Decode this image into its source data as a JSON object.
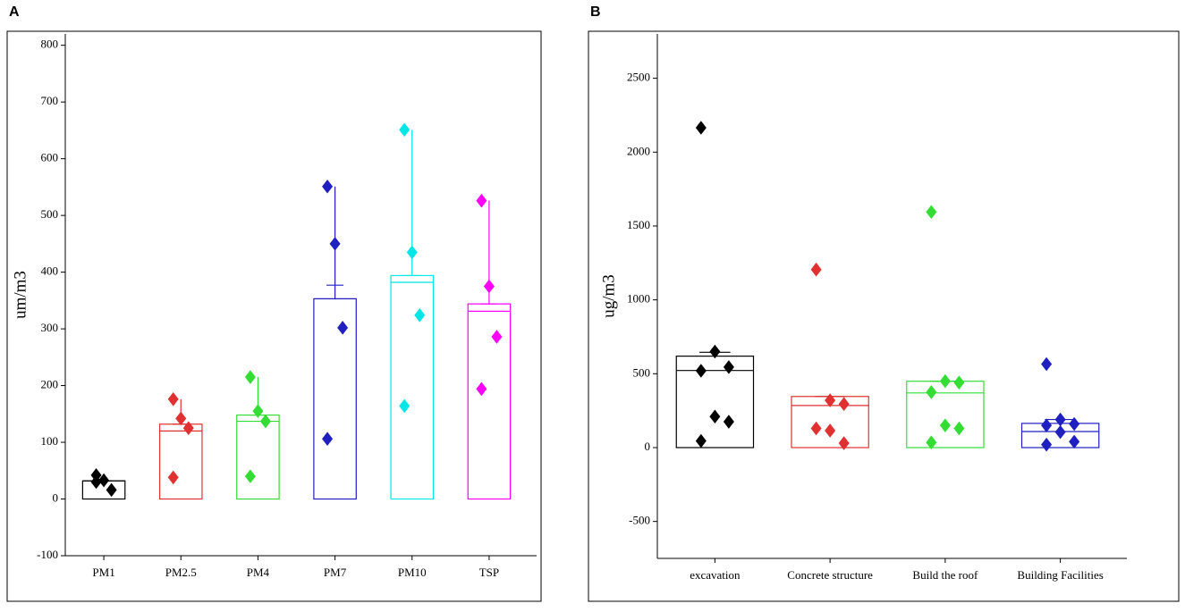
{
  "chart_data": [
    {
      "type": "bar",
      "panel_label": "A",
      "ylabel": "um/m3",
      "categories": [
        "PM1",
        "PM2.5",
        "PM4",
        "PM7",
        "PM10",
        "TSP"
      ],
      "colors": [
        "#000000",
        "#e03030",
        "#33dd33",
        "#2020c0",
        "#00e5e5",
        "#ff00ff"
      ],
      "bar_values": [
        32,
        132,
        148,
        353,
        394,
        344
      ],
      "line_values": [
        32,
        120,
        137,
        353,
        382,
        331
      ],
      "cap_values": [
        32,
        132,
        148,
        377,
        394,
        344
      ],
      "whisker_max": [
        42,
        176,
        215,
        551,
        651,
        526
      ],
      "points": [
        [
          42,
          33,
          16,
          30
        ],
        [
          176,
          142,
          125,
          38
        ],
        [
          215,
          155,
          137,
          40
        ],
        [
          551,
          450,
          302,
          106
        ],
        [
          651,
          435,
          324,
          164
        ],
        [
          526,
          375,
          286,
          194
        ]
      ],
      "ylim": [
        -100,
        820
      ],
      "yticks": [
        -100,
        0,
        100,
        200,
        300,
        400,
        500,
        600,
        700,
        800
      ]
    },
    {
      "type": "bar",
      "panel_label": "B",
      "ylabel": "ug/m3",
      "categories": [
        "excavation",
        "Concrete structure",
        "Build the roof",
        "Building Facilities"
      ],
      "colors": [
        "#000000",
        "#e03030",
        "#33dd33",
        "#2020c0"
      ],
      "bar_values": [
        619,
        346,
        449,
        164
      ],
      "line_values": [
        522,
        285,
        370,
        109
      ],
      "cap_values": [
        645,
        346,
        449,
        190
      ],
      "whisker_max": [
        650,
        346,
        449,
        190
      ],
      "points": [
        [
          2165,
          650,
          545,
          520,
          210,
          175,
          45
        ],
        [
          1205,
          320,
          295,
          130,
          115,
          30
        ],
        [
          1595,
          450,
          440,
          375,
          150,
          130,
          35
        ],
        [
          565,
          190,
          160,
          150,
          105,
          40,
          20
        ]
      ],
      "ylim": [
        -750,
        2800
      ],
      "yticks": [
        -500,
        0,
        500,
        1000,
        1500,
        2000,
        2500
      ]
    }
  ]
}
